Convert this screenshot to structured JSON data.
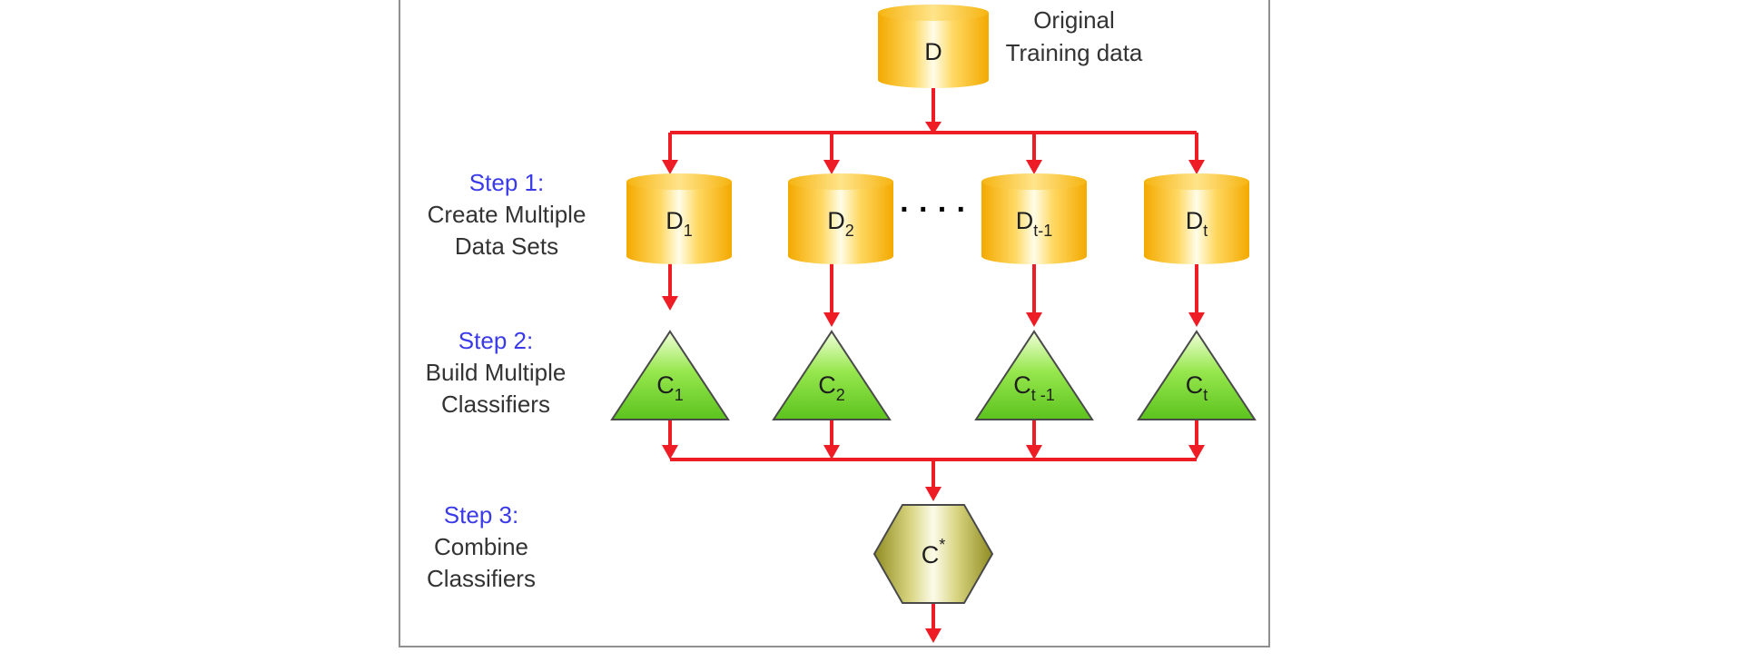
{
  "colors": {
    "arrow": "#ee1c25",
    "step_title": "#3a3ae8",
    "text": "#333333",
    "cylinder": "#f5b91c",
    "triangle": "#6fd02a",
    "hexagon": "#a7a42f"
  },
  "original": {
    "node": "D",
    "label_line1": "Original",
    "label_line2": "Training data"
  },
  "steps": [
    {
      "title": "Step 1:",
      "line1": "Create Multiple",
      "line2": "Data Sets"
    },
    {
      "title": "Step 2:",
      "line1": "Build Multiple",
      "line2": "Classifiers"
    },
    {
      "title": "Step 3:",
      "line1": "Combine",
      "line2": "Classifiers"
    }
  ],
  "datasets": [
    {
      "main": "D",
      "sub": "1"
    },
    {
      "main": "D",
      "sub": "2"
    },
    {
      "main": "D",
      "sub": "t-1"
    },
    {
      "main": "D",
      "sub": "t"
    }
  ],
  "ellipsis": "· · · ·",
  "classifiers": [
    {
      "main": "C",
      "sub": "1"
    },
    {
      "main": "C",
      "sub": "2"
    },
    {
      "main": "C",
      "sub": "t -1"
    },
    {
      "main": "C",
      "sub": "t"
    }
  ],
  "combined": {
    "main": "C",
    "sup": "*"
  }
}
